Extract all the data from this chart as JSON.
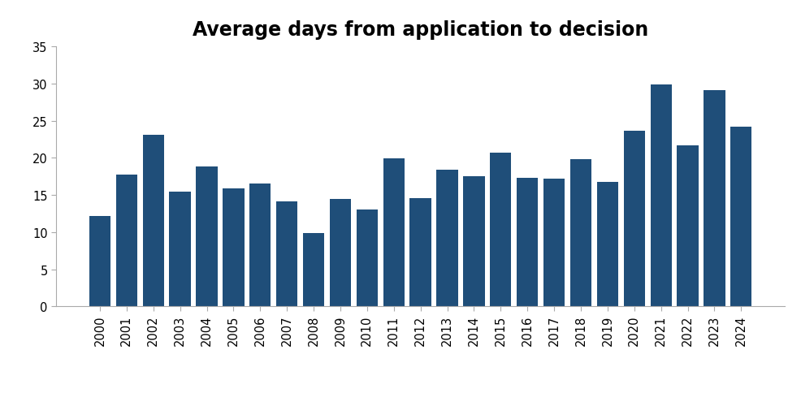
{
  "title": "Average days from application to decision",
  "years": [
    2000,
    2001,
    2002,
    2003,
    2004,
    2005,
    2006,
    2007,
    2008,
    2009,
    2010,
    2011,
    2012,
    2013,
    2014,
    2015,
    2016,
    2017,
    2018,
    2019,
    2020,
    2021,
    2022,
    2023,
    2024
  ],
  "values": [
    12.2,
    17.7,
    23.1,
    15.4,
    18.8,
    15.9,
    16.5,
    14.1,
    9.9,
    14.5,
    13.0,
    19.9,
    14.6,
    18.4,
    17.5,
    20.7,
    17.3,
    17.2,
    19.8,
    16.8,
    23.6,
    29.9,
    21.7,
    29.1,
    24.2
  ],
  "bar_color": "#1F4E79",
  "ylim": [
    0,
    35
  ],
  "yticks": [
    0,
    5,
    10,
    15,
    20,
    25,
    30,
    35
  ],
  "title_fontsize": 17,
  "tick_fontsize": 10.5,
  "background_color": "#ffffff"
}
